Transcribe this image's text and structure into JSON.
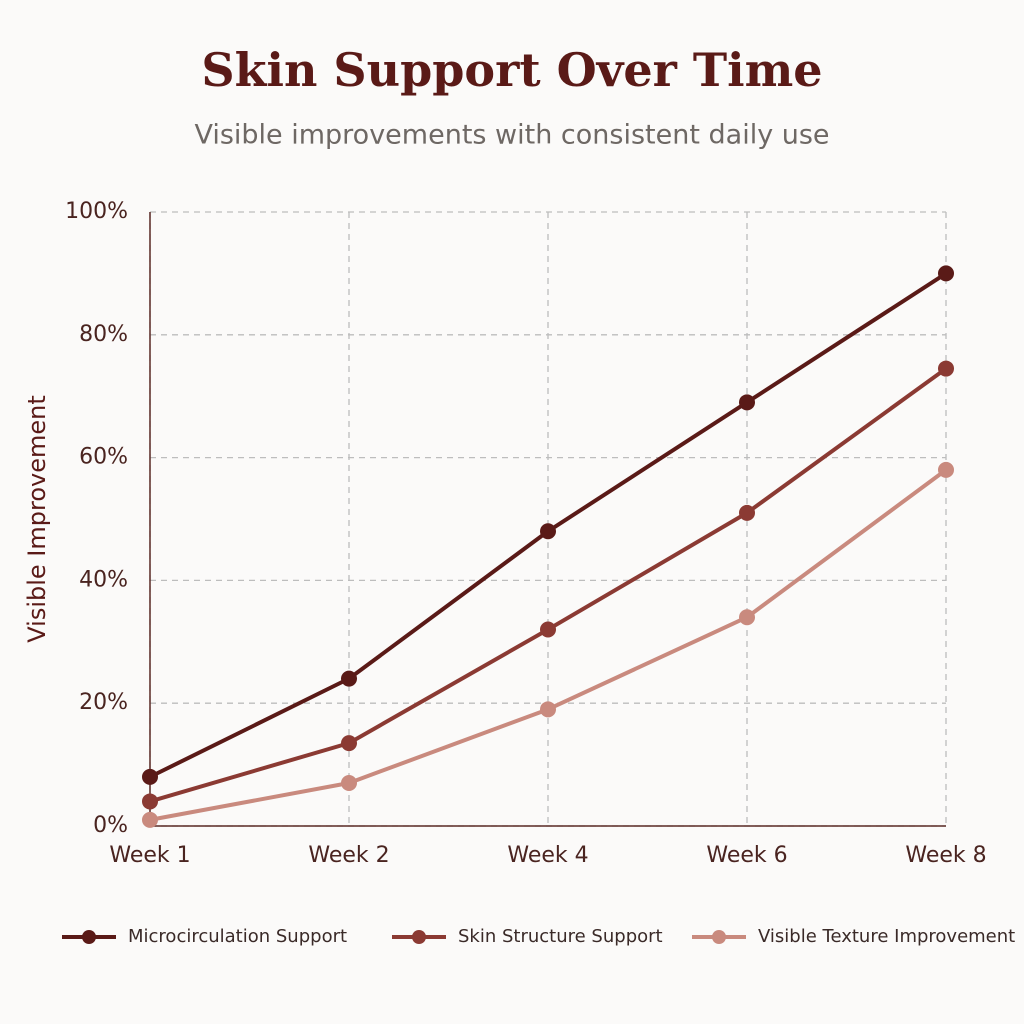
{
  "chart_data": {
    "type": "line",
    "title": "Skin Support Over Time",
    "subtitle": "Visible improvements with consistent daily use",
    "y_label": "Visible Improvement",
    "categories": [
      "Week 1",
      "Week 2",
      "Week 4",
      "Week 6",
      "Week 8"
    ],
    "series": [
      {
        "name": "Microcirculation Support",
        "color": "#5a1a17",
        "values": [
          8,
          24,
          48,
          69,
          90
        ]
      },
      {
        "name": "Skin Structure Support",
        "color": "#8b3a33",
        "values": [
          4,
          13.5,
          32,
          51,
          74.5
        ]
      },
      {
        "name": "Visible Texture Improvement",
        "color": "#c98a7e",
        "values": [
          1,
          7,
          19,
          34,
          58
        ]
      }
    ],
    "ylim": [
      0,
      100
    ],
    "yticks": [
      {
        "value": 0,
        "label": "0%"
      },
      {
        "value": 20,
        "label": "20%"
      },
      {
        "value": 40,
        "label": "40%"
      },
      {
        "value": 60,
        "label": "60%"
      },
      {
        "value": 80,
        "label": "80%"
      },
      {
        "value": 100,
        "label": "100%"
      }
    ],
    "grid": true,
    "legend": "bottom"
  }
}
